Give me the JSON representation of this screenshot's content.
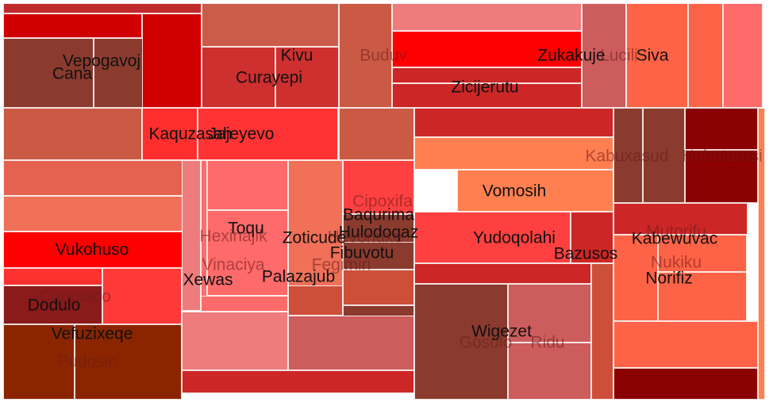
{
  "chart_data": {
    "type": "treemap",
    "title": "",
    "colors": {
      "border": "#ffffff",
      "label_dark": "#111111",
      "label_faint": "rgba(110,28,28,0.55)"
    },
    "cells": [
      {
        "name": "",
        "value": 3.5,
        "color": "#C0292B",
        "label": false
      },
      {
        "name": "",
        "value": 5.3,
        "color": "#D10000",
        "label": false
      },
      {
        "name": "Vepogavoj",
        "value": 4.6,
        "color": "#8B3A2E",
        "label": "dark"
      },
      {
        "name": "Cana",
        "value": 6.0,
        "color": "#8B3A2E",
        "label": "dark"
      },
      {
        "name": "",
        "value": 8.0,
        "color": "#D10000",
        "label": false
      },
      {
        "name": "",
        "value": 5.9,
        "color": "#CB5A45",
        "label": false
      },
      {
        "name": "Kaquzasah",
        "value": 3.0,
        "color": "#FF2E2E",
        "label": "dark"
      },
      {
        "name": "Jajeyevo",
        "value": 4.5,
        "color": "#FF3333",
        "label": "dark"
      },
      {
        "name": "Curayepi",
        "value": 5.5,
        "color": "#CE2F2F",
        "label": "dark"
      },
      {
        "name": "Kivu",
        "value": 3.0,
        "color": "#CE2F2F",
        "label": "dark"
      },
      {
        "name": "",
        "value": 5.0,
        "color": "#CC5C4A",
        "label": false
      },
      {
        "name": "Buduv",
        "value": 6.8,
        "color": "#CB5A45",
        "label": "faint"
      },
      {
        "name": "",
        "value": 3.4,
        "color": "#CB5A45",
        "label": false
      },
      {
        "name": "",
        "value": 3.2,
        "color": "#E56250",
        "label": false
      },
      {
        "name": "",
        "value": 4.8,
        "color": "#F07058",
        "label": false
      },
      {
        "name": "Vukohuso",
        "value": 3.1,
        "color": "#FF0000",
        "label": "dark"
      },
      {
        "name": "",
        "value": 1.2,
        "color": "#FF3030",
        "label": false
      },
      {
        "name": "Conotaco",
        "value": 4.0,
        "color": "#FF3838",
        "label": "faint"
      },
      {
        "name": "Dodulo",
        "value": 2.3,
        "color": "#8B1A1A",
        "label": "dark"
      },
      {
        "name": "Vefuzixeqe",
        "value": 3.0,
        "color": "#8B2500",
        "label": "dark"
      },
      {
        "name": "Pudosin",
        "value": 5.2,
        "color": "#8B2500",
        "label": "faint"
      },
      {
        "name": "Xewas",
        "value": 2.0,
        "color": "#EE7C7C",
        "label": "dark"
      },
      {
        "name": "",
        "value": 0.5,
        "color": "#FF6A6A",
        "label": false
      },
      {
        "name": "Hexinajik",
        "value": 3.5,
        "color": "#FF6A6A",
        "label": "faint"
      },
      {
        "name": "Toqu",
        "value": 2.0,
        "color": "#FF6A6A",
        "label": "dark"
      },
      {
        "name": "Vinaciya",
        "value": 3.2,
        "color": "#FF6A6A",
        "label": "faint"
      },
      {
        "name": "",
        "value": 0.8,
        "color": "#F07058",
        "label": false
      },
      {
        "name": "Zoticude",
        "value": 4.6,
        "color": "#CD4F39",
        "label": "dark"
      },
      {
        "name": "Palazajub",
        "value": 1.5,
        "color": "#CD4F39",
        "label": "dark"
      },
      {
        "name": "Fegimiri",
        "value": 4.0,
        "color": "#FF4040",
        "label": "faint"
      },
      {
        "name": "Hulodoqaz",
        "value": 1.0,
        "color": "#8B3A2E",
        "label": "dark"
      },
      {
        "name": "Baqurima",
        "value": 1.2,
        "color": "#8B3A2E",
        "label": "dark"
      },
      {
        "name": "Cipoxifa",
        "value": 3.6,
        "color": "#8B3A2E",
        "label": "faint"
      },
      {
        "name": "Fibuvotu",
        "value": 2.0,
        "color": "#EE7C7C",
        "label": "dark"
      },
      {
        "name": "Hevonuxe",
        "value": 1.0,
        "color": "#CD2626",
        "label": "faint"
      },
      {
        "name": "",
        "value": 3.7,
        "color": "#EE7C7C",
        "label": false
      },
      {
        "name": "",
        "value": 5.0,
        "color": "#FF0000",
        "label": false
      },
      {
        "name": "Zukakuje",
        "value": 3.3,
        "color": "#CD2626",
        "label": "dark"
      },
      {
        "name": "",
        "value": 3.1,
        "color": "#CD2626",
        "label": false
      },
      {
        "name": "Zicijerutu",
        "value": 2.8,
        "color": "#CD5C5C",
        "label": "dark"
      },
      {
        "name": "",
        "value": 1.3,
        "color": "#CD5C5C",
        "label": false
      },
      {
        "name": "Lucili",
        "value": 2.4,
        "color": "#FF6347",
        "label": "faint"
      },
      {
        "name": "Siva",
        "value": 3.0,
        "color": "#FF6347",
        "label": "dark"
      },
      {
        "name": "",
        "value": 1.0,
        "color": "#FF6A6A",
        "label": false
      },
      {
        "name": "",
        "value": 1.2,
        "color": "#CD2626",
        "label": false
      },
      {
        "name": "",
        "value": 2.0,
        "color": "#FF7F50",
        "label": false
      },
      {
        "name": "",
        "value": 2.0,
        "color": "#FF7F50",
        "label": false
      },
      {
        "name": "Vomosih",
        "value": 2.5,
        "color": "#FF4040",
        "label": "dark"
      },
      {
        "name": "Yudoqolahi",
        "value": 4.0,
        "color": "#CD2626",
        "label": "dark"
      },
      {
        "name": "Bazusos",
        "value": 1.5,
        "color": "#CD2626",
        "label": "dark"
      },
      {
        "name": "",
        "value": 0.9,
        "color": "#8B3A2E",
        "label": false
      },
      {
        "name": "Gosolo",
        "value": 2.4,
        "color": "#CD5C5C",
        "label": "faint"
      },
      {
        "name": "Wigezet",
        "value": 3.3,
        "color": "#CD5C5C",
        "label": "dark"
      },
      {
        "name": "Ridu",
        "value": 3.5,
        "color": "#CD4F39",
        "label": "faint"
      },
      {
        "name": "",
        "value": 1.2,
        "color": "#8B3A2E",
        "label": false
      },
      {
        "name": "Kabuxasud",
        "value": 1.5,
        "color": "#8B3A2E",
        "label": "faint"
      },
      {
        "name": "Hohoturusi",
        "value": 2.7,
        "color": "#8B0000",
        "label": "faint"
      },
      {
        "name": "",
        "value": 1.8,
        "color": "#8B0000",
        "label": false
      },
      {
        "name": "",
        "value": 0.5,
        "color": "#CD2626",
        "label": false
      },
      {
        "name": "Mutorifu",
        "value": 1.8,
        "color": "#FF6347",
        "label": "faint"
      },
      {
        "name": "Kabewuvac",
        "value": 1.5,
        "color": "#FF6347",
        "label": "dark"
      },
      {
        "name": "Nukiku",
        "value": 3.2,
        "color": "#FF6347",
        "label": "faint"
      },
      {
        "name": "Norifiz",
        "value": 3.3,
        "color": "#FF6347",
        "label": "dark"
      },
      {
        "name": "",
        "value": 1.1,
        "color": "#8B0000",
        "label": false
      },
      {
        "name": "",
        "value": 1.3,
        "color": "#FF7F50",
        "label": false
      }
    ]
  }
}
